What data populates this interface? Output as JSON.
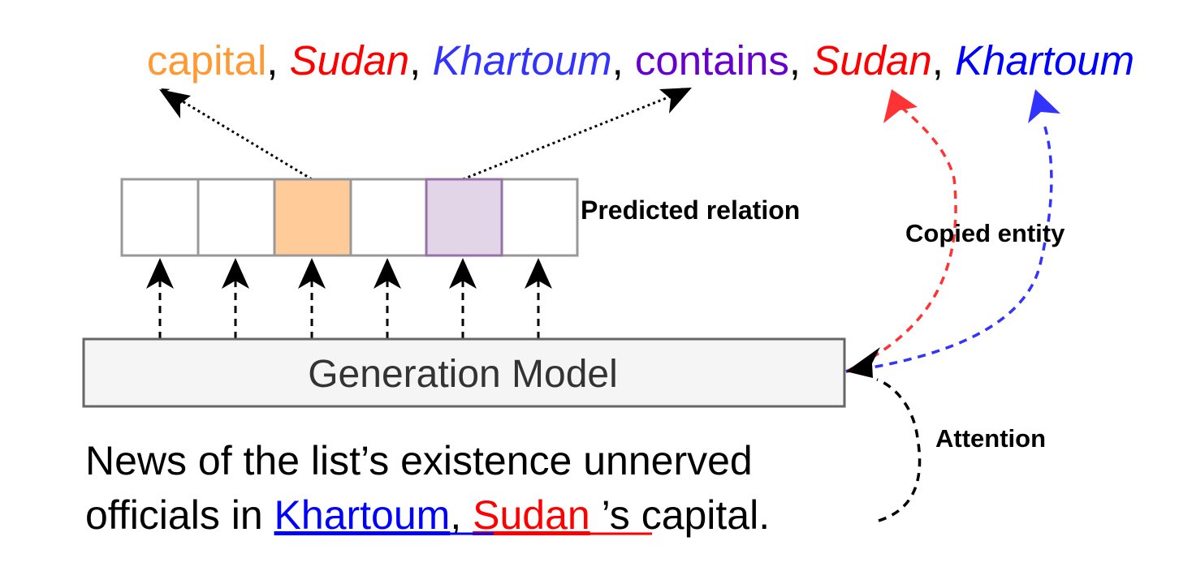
{
  "output_sequence": {
    "tokens": [
      {
        "text": "capital",
        "color": "#FF9933",
        "italic": false
      },
      {
        "text": "Sudan",
        "color": "#FF0000",
        "italic": true
      },
      {
        "text": "Khartoum",
        "color": "#3333FF",
        "italic": true
      },
      {
        "text": "contains",
        "color": "#6600CC",
        "italic": false
      },
      {
        "text": "Sudan",
        "color": "#FF0000",
        "italic": true
      },
      {
        "text": "Khartoum",
        "color": "#0000FF",
        "italic": true
      }
    ],
    "separator": ", "
  },
  "relation_boxes": {
    "label": "Predicted relation",
    "count": 6,
    "highlighted": [
      {
        "index": 2,
        "fill": "#FFCC99",
        "stroke": "#999999"
      },
      {
        "index": 4,
        "fill": "#E1D5E7",
        "stroke": "#9673A6"
      }
    ]
  },
  "model": {
    "label": "Generation Model"
  },
  "labels": {
    "copied_entity": "Copied entity",
    "attention": "Attention"
  },
  "input_sentence": {
    "line1": "News of the list’s existence unnerved",
    "line2_prefix": "officials in ",
    "entity1": "Khartoum",
    "comma": ", ",
    "entity2": "Sudan",
    "line2_suffix": " ’s capital.",
    "entity1_color": "#0000FF",
    "entity2_color": "#FF0000"
  }
}
